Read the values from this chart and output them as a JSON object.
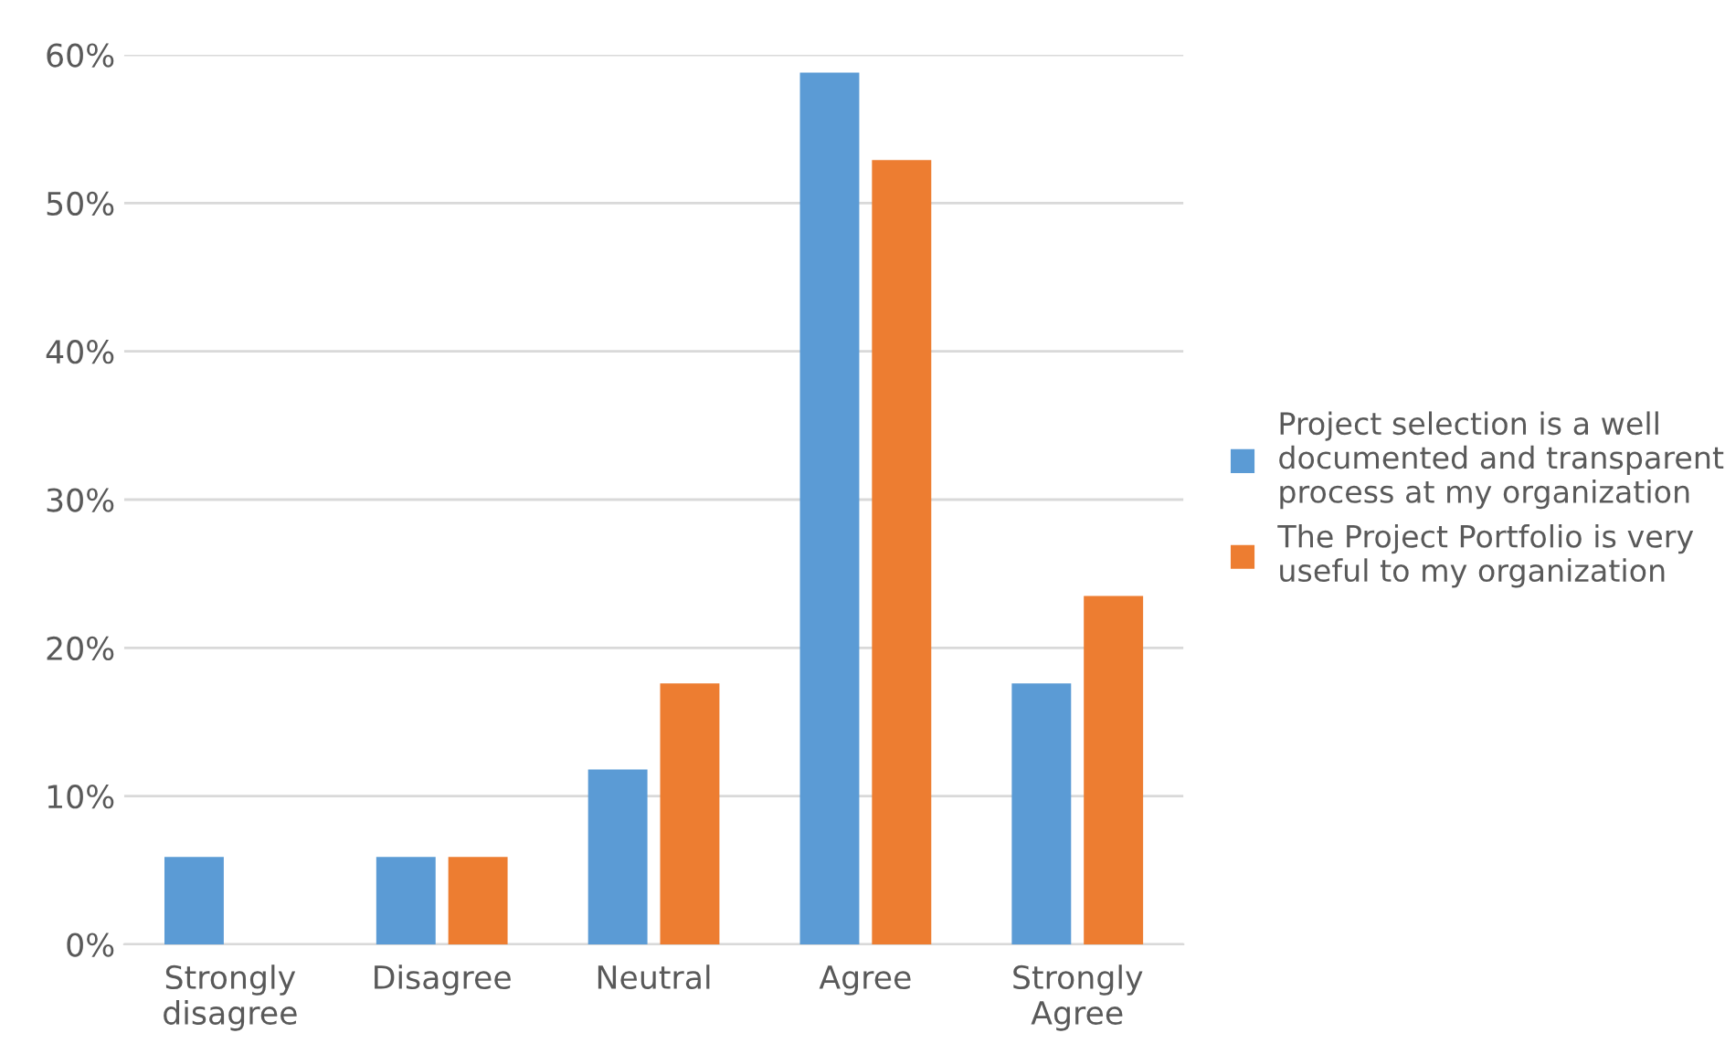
{
  "chart_data": {
    "type": "bar",
    "categories": [
      "Strongly\ndisagree",
      "Disagree",
      "Neutral",
      "Agree",
      "Strongly\nAgree"
    ],
    "series": [
      {
        "name": "Project selection is a well\ndocumented and transparent\nprocess at my organization",
        "color": "#5b9bd5",
        "values": [
          5.9,
          5.9,
          11.8,
          58.8,
          17.6
        ]
      },
      {
        "name": "The Project Portfolio is very\nuseful to my organization",
        "color": "#ed7d31",
        "values": [
          0,
          5.9,
          17.6,
          52.9,
          23.5
        ]
      }
    ],
    "ylim": [
      0,
      60
    ],
    "yticks": [
      {
        "value": 0,
        "label": "0%"
      },
      {
        "value": 10,
        "label": "10%"
      },
      {
        "value": 20,
        "label": "20%"
      },
      {
        "value": 30,
        "label": "30%"
      },
      {
        "value": 40,
        "label": "40%"
      },
      {
        "value": 50,
        "label": "50%"
      },
      {
        "value": 60,
        "label": "60%"
      }
    ],
    "grid": "y",
    "legend": "right"
  }
}
